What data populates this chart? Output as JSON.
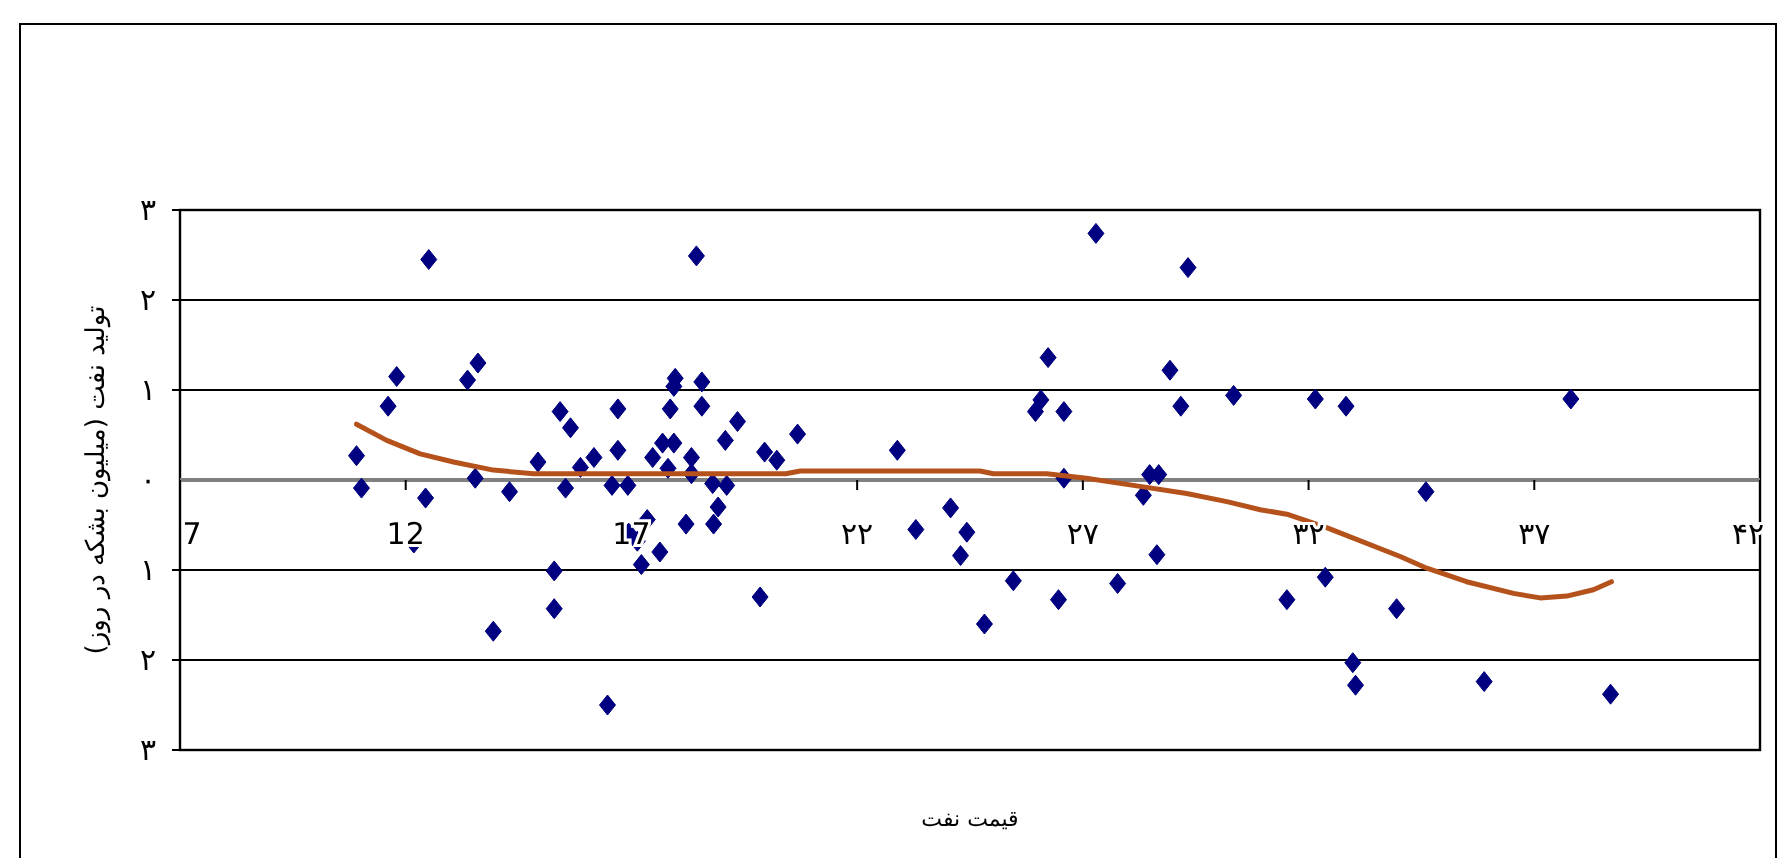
{
  "chart_data": {
    "type": "scatter",
    "xlabel": "قیمت نفت",
    "ylabel": "تولید نفت (میلیون بشکه در روز)",
    "xlim": [
      7,
      42
    ],
    "ylim": [
      -3,
      3
    ],
    "xticks": [
      7,
      12,
      17,
      {
        "value": 22,
        "label": "۲۲"
      },
      {
        "value": 27,
        "label": "۲۷"
      },
      {
        "value": 32,
        "label": "۳۲"
      },
      {
        "value": 37,
        "label": "۳۷"
      },
      {
        "value": 42,
        "label": "۴۲"
      }
    ],
    "yticks": [
      {
        "value": 3,
        "label": "۳"
      },
      {
        "value": 2,
        "label": "۲"
      },
      {
        "value": 1,
        "label": "۱"
      },
      {
        "value": 0,
        "label": "۰"
      },
      {
        "value": -1,
        "label": "۱"
      },
      {
        "value": -2,
        "label": "۲"
      },
      {
        "value": -3,
        "label": "۳"
      }
    ],
    "grid": "y",
    "series": [
      {
        "color": "#000080",
        "marker": "diamond",
        "x": [
          12.51,
          18.44,
          11.8,
          11.61,
          13.37,
          13.6,
          10.91,
          11.02,
          12.44,
          13.54,
          14.3,
          14.93,
          15.42,
          15.65,
          15.54,
          15.87,
          16.17,
          16.7,
          16.7,
          16.57,
          16.92,
          17.47,
          17.69,
          17.94,
          17.81,
          17.86,
          17.94,
          17.97,
          18.56,
          18.56,
          18.33,
          18.33,
          19.08,
          19.35,
          18.8,
          19.11,
          18.92,
          18.82,
          18.21,
          17.35,
          16.94,
          17.13,
          17.22,
          17.63,
          12.18,
          15.29,
          15.29,
          13.94,
          16.47,
          19.85,
          19.95,
          20.22,
          20.68,
          22.89,
          27.29,
          29.33,
          26.23,
          26.07,
          25.95,
          26.58,
          28.93,
          29.17,
          30.34,
          26.58,
          28.48,
          28.68,
          28.34,
          24.07,
          23.3,
          24.43,
          24.29,
          28.64,
          25.46,
          27.77,
          26.46,
          24.82,
          31.52,
          32.15,
          32.83,
          37.81,
          34.6,
          32.37,
          33.95,
          32.98,
          33.04,
          35.89,
          38.69
        ],
        "values": [
          2.45,
          2.49,
          1.15,
          0.82,
          1.11,
          1.3,
          0.27,
          -0.09,
          -0.2,
          0.02,
          -0.13,
          0.2,
          0.76,
          0.58,
          -0.09,
          0.14,
          0.25,
          0.79,
          0.33,
          -0.06,
          -0.06,
          0.25,
          0.41,
          0.41,
          0.13,
          0.79,
          1.04,
          1.13,
          1.09,
          0.82,
          0.25,
          0.07,
          0.44,
          0.65,
          -0.04,
          -0.06,
          -0.3,
          -0.49,
          -0.49,
          -0.44,
          -0.59,
          -0.68,
          -0.94,
          -0.8,
          -0.7,
          -1.01,
          -1.43,
          -1.68,
          -2.5,
          -1.3,
          0.31,
          0.22,
          0.51,
          0.33,
          2.74,
          2.36,
          1.36,
          0.89,
          0.76,
          0.76,
          1.22,
          0.82,
          0.94,
          0.02,
          0.06,
          0.06,
          -0.17,
          -0.31,
          -0.55,
          -0.58,
          -0.84,
          -0.83,
          -1.12,
          -1.15,
          -1.33,
          -1.6,
          -1.33,
          0.9,
          0.82,
          0.9,
          -0.13,
          -1.08,
          -1.43,
          -2.03,
          -2.28,
          -2.24,
          -2.38
        ]
      },
      {
        "type": "line",
        "color": "#b5521b",
        "marker": "none",
        "x": [
          10.91,
          11.58,
          12.32,
          13.06,
          13.94,
          14.83,
          20.42,
          20.74,
          24.72,
          25.02,
          26.2,
          27.08,
          28.12,
          29.3,
          30.19,
          30.93,
          31.52,
          32.4,
          34.03,
          34.62,
          35.5,
          36.54,
          37.13,
          37.72,
          38.31,
          38.71
        ],
        "values": [
          0.62,
          0.44,
          0.29,
          0.2,
          0.11,
          0.07,
          0.07,
          0.1,
          0.1,
          0.07,
          0.07,
          0.02,
          -0.06,
          -0.15,
          -0.24,
          -0.33,
          -0.38,
          -0.53,
          -0.85,
          -0.98,
          -1.13,
          -1.26,
          -1.31,
          -1.29,
          -1.22,
          -1.13
        ]
      }
    ]
  }
}
